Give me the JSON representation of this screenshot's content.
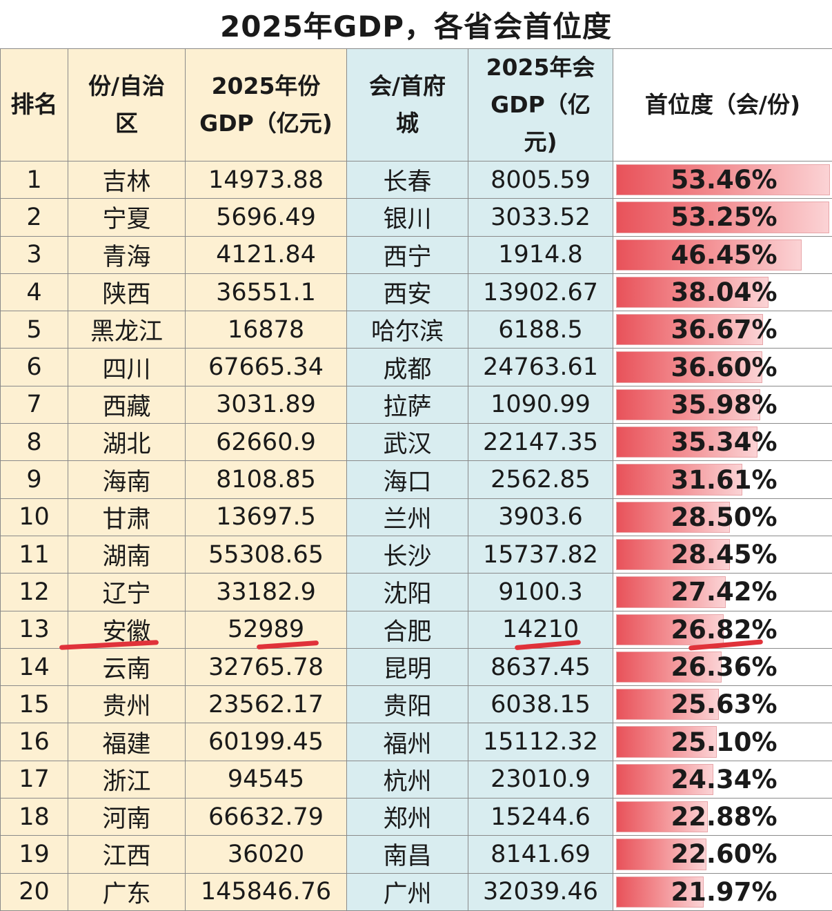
{
  "title": "2025年GDP，各省会首位度",
  "headers": {
    "rank": "排名",
    "province": "份/自治\n区",
    "province_gdp": "2025年份\nGDP（亿元)",
    "capital": "会/首府\n城",
    "capital_gdp": "2025年会\nGDP（亿\n元)",
    "primacy": "首位度（会/份)"
  },
  "colors": {
    "bar_start": "#e8525a",
    "bar_end": "#fbd3d5",
    "province_bg": "#fdf0d2",
    "capital_bg": "#d9edf0",
    "underline": "#e0323a"
  },
  "chart_data": {
    "type": "table",
    "columns": [
      "排名",
      "份/自治区",
      "2025年份GDP（亿元)",
      "会/首府城",
      "2025年会GDP（亿元)",
      "首位度（会/份)"
    ],
    "rows": [
      {
        "rank": "1",
        "province": "吉林",
        "province_gdp": "14973.88",
        "capital": "长春",
        "capital_gdp": "8005.59",
        "primacy": "53.46%",
        "value": 53.46
      },
      {
        "rank": "2",
        "province": "宁夏",
        "province_gdp": "5696.49",
        "capital": "银川",
        "capital_gdp": "3033.52",
        "primacy": "53.25%",
        "value": 53.25
      },
      {
        "rank": "3",
        "province": "青海",
        "province_gdp": "4121.84",
        "capital": "西宁",
        "capital_gdp": "1914.8",
        "primacy": "46.45%",
        "value": 46.45
      },
      {
        "rank": "4",
        "province": "陕西",
        "province_gdp": "36551.1",
        "capital": "西安",
        "capital_gdp": "13902.67",
        "primacy": "38.04%",
        "value": 38.04
      },
      {
        "rank": "5",
        "province": "黑龙江",
        "province_gdp": "16878",
        "capital": "哈尔滨",
        "capital_gdp": "6188.5",
        "primacy": "36.67%",
        "value": 36.67
      },
      {
        "rank": "6",
        "province": "四川",
        "province_gdp": "67665.34",
        "capital": "成都",
        "capital_gdp": "24763.61",
        "primacy": "36.60%",
        "value": 36.6
      },
      {
        "rank": "7",
        "province": "西藏",
        "province_gdp": "3031.89",
        "capital": "拉萨",
        "capital_gdp": "1090.99",
        "primacy": "35.98%",
        "value": 35.98
      },
      {
        "rank": "8",
        "province": "湖北",
        "province_gdp": "62660.9",
        "capital": "武汉",
        "capital_gdp": "22147.35",
        "primacy": "35.34%",
        "value": 35.34
      },
      {
        "rank": "9",
        "province": "海南",
        "province_gdp": "8108.85",
        "capital": "海口",
        "capital_gdp": "2562.85",
        "primacy": "31.61%",
        "value": 31.61
      },
      {
        "rank": "10",
        "province": "甘肃",
        "province_gdp": "13697.5",
        "capital": "兰州",
        "capital_gdp": "3903.6",
        "primacy": "28.50%",
        "value": 28.5
      },
      {
        "rank": "11",
        "province": "湖南",
        "province_gdp": "55308.65",
        "capital": "长沙",
        "capital_gdp": "15737.82",
        "primacy": "28.45%",
        "value": 28.45
      },
      {
        "rank": "12",
        "province": "辽宁",
        "province_gdp": "33182.9",
        "capital": "沈阳",
        "capital_gdp": "9100.3",
        "primacy": "27.42%",
        "value": 27.42
      },
      {
        "rank": "13",
        "province": "安徽",
        "province_gdp": "52989",
        "capital": "合肥",
        "capital_gdp": "14210",
        "primacy": "26.82%",
        "value": 26.82
      },
      {
        "rank": "14",
        "province": "云南",
        "province_gdp": "32765.78",
        "capital": "昆明",
        "capital_gdp": "8637.45",
        "primacy": "26.36%",
        "value": 26.36
      },
      {
        "rank": "15",
        "province": "贵州",
        "province_gdp": "23562.17",
        "capital": "贵阳",
        "capital_gdp": "6038.15",
        "primacy": "25.63%",
        "value": 25.63
      },
      {
        "rank": "16",
        "province": "福建",
        "province_gdp": "60199.45",
        "capital": "福州",
        "capital_gdp": "15112.32",
        "primacy": "25.10%",
        "value": 25.1
      },
      {
        "rank": "17",
        "province": "浙江",
        "province_gdp": "94545",
        "capital": "杭州",
        "capital_gdp": "23010.9",
        "primacy": "24.34%",
        "value": 24.34
      },
      {
        "rank": "18",
        "province": "河南",
        "province_gdp": "66632.79",
        "capital": "郑州",
        "capital_gdp": "15244.6",
        "primacy": "22.88%",
        "value": 22.88
      },
      {
        "rank": "19",
        "province": "江西",
        "province_gdp": "36020",
        "capital": "南昌",
        "capital_gdp": "8141.69",
        "primacy": "22.60%",
        "value": 22.6
      },
      {
        "rank": "20",
        "province": "广东",
        "province_gdp": "145846.76",
        "capital": "广州",
        "capital_gdp": "32039.46",
        "primacy": "21.97%",
        "value": 21.97
      }
    ],
    "bar_max": 53.46,
    "highlighted_row": "13"
  }
}
